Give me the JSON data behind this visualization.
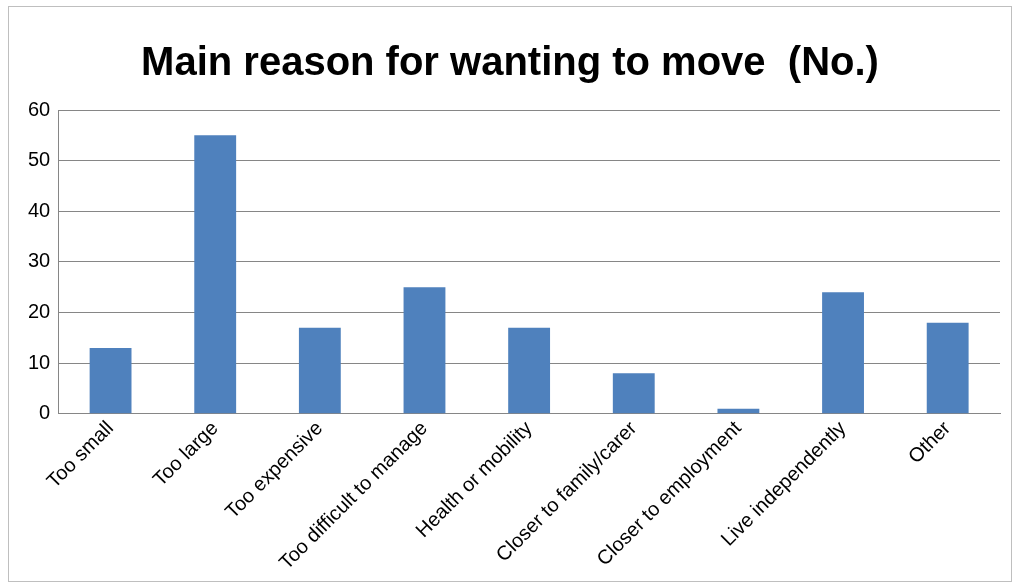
{
  "chart_data": {
    "type": "bar",
    "title": "Main reason for wanting to move  (No.)",
    "categories": [
      "Too small",
      "Too large",
      "Too expensive",
      "Too difficult to manage",
      "Health or mobility",
      "Closer to family/carer",
      "Closer to employment",
      "Live independently",
      "Other"
    ],
    "values": [
      13,
      55,
      17,
      25,
      17,
      8,
      1,
      24,
      18
    ],
    "color": "#4f81bd",
    "ylim": [
      0,
      60
    ],
    "yticks": [
      0,
      10,
      20,
      30,
      40,
      50,
      60
    ],
    "grid": "y",
    "legend": false
  }
}
